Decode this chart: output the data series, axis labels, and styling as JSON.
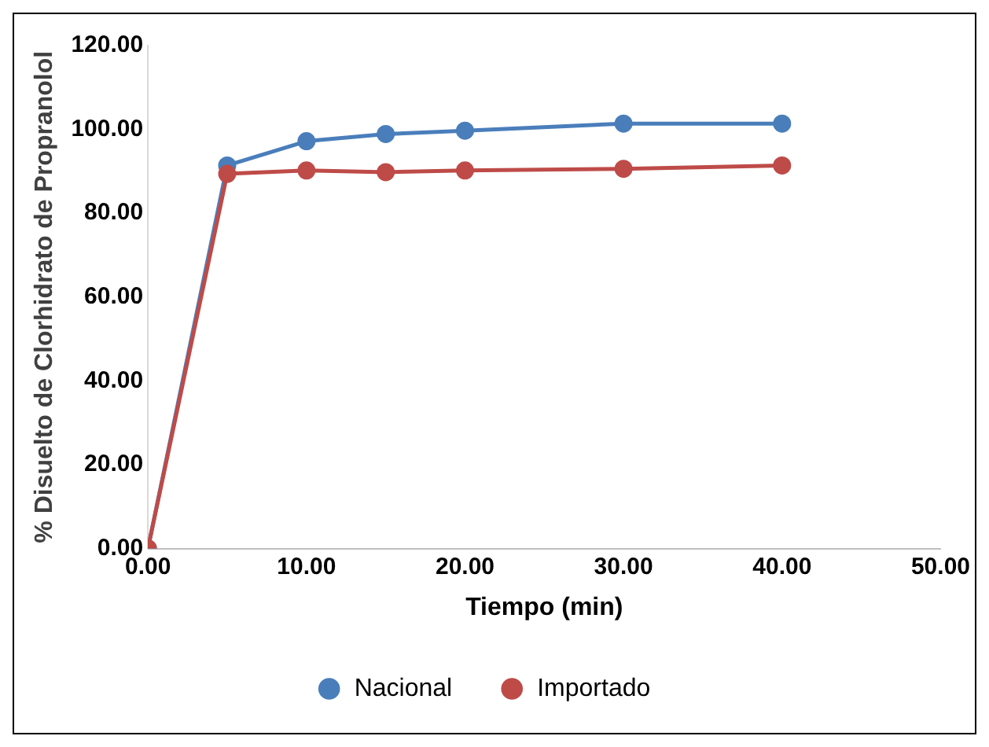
{
  "chart_data": {
    "type": "line",
    "xlabel": "Tiempo (min)",
    "ylabel": "% Disuelto de Clorhidrato de Propranolol",
    "x": [
      0,
      5,
      10,
      15,
      20,
      30,
      40
    ],
    "series": [
      {
        "name": "Nacional",
        "color": "#4a7ebb",
        "values": [
          0,
          91.4,
          97.2,
          98.9,
          99.7,
          101.4,
          101.4
        ]
      },
      {
        "name": "Importado",
        "color": "#be4b48",
        "values": [
          0,
          89.4,
          90.2,
          89.8,
          90.2,
          90.6,
          91.4
        ]
      }
    ],
    "xlim": [
      0,
      50
    ],
    "xticks": [
      {
        "value": 0,
        "label": "0.00"
      },
      {
        "value": 10,
        "label": "10.00"
      },
      {
        "value": 20,
        "label": "20.00"
      },
      {
        "value": 30,
        "label": "30.00"
      },
      {
        "value": 40,
        "label": "40.00"
      },
      {
        "value": 50,
        "label": "50.00"
      }
    ],
    "ylim": [
      0,
      120
    ],
    "yticks": [
      {
        "value": 0,
        "label": "0.00"
      },
      {
        "value": 20,
        "label": "20.00"
      },
      {
        "value": 40,
        "label": "40.00"
      },
      {
        "value": 60,
        "label": "60.00"
      },
      {
        "value": 80,
        "label": "80.00"
      },
      {
        "value": 100,
        "label": "100.00"
      },
      {
        "value": 120,
        "label": "120.00"
      }
    ],
    "grid": false,
    "legend": "bottom",
    "marker": "circle",
    "line_style": "solid"
  }
}
